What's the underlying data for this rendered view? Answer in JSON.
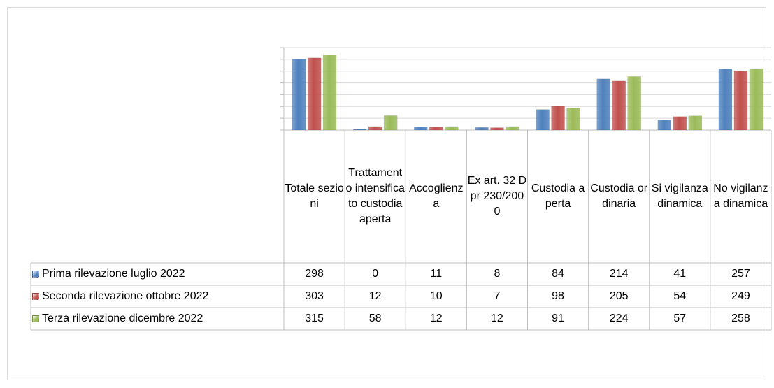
{
  "chart_data": {
    "type": "bar",
    "categories": [
      "Totale sezioni",
      "Trattamento intensificato custodia aperta",
      "Accoglienza",
      "Ex art. 32 Dpr 230/2000",
      "Custodia aperta",
      "Custodia ordinaria",
      "Si vigilanza dinamica",
      "No vigilanza dinamica"
    ],
    "series": [
      {
        "name": "Prima rilevazione luglio 2022",
        "color": "#4f81bd",
        "values": [
          298,
          0,
          11,
          8,
          84,
          214,
          41,
          257
        ]
      },
      {
        "name": "Seconda rilevazione ottobre 2022",
        "color": "#c0504d",
        "values": [
          303,
          12,
          10,
          7,
          98,
          205,
          54,
          249
        ]
      },
      {
        "name": "Terza rilevazione dicembre 2022",
        "color": "#9bbb59",
        "values": [
          315,
          58,
          12,
          12,
          91,
          224,
          57,
          258
        ]
      }
    ],
    "ylim": [
      0,
      350
    ],
    "yticks": [
      0,
      50,
      100,
      150,
      200,
      250,
      300,
      350
    ],
    "grid": true
  }
}
